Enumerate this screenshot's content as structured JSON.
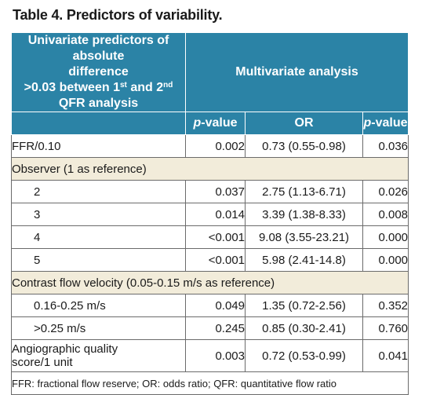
{
  "caption": "Table 4. Predictors of variability.",
  "header": {
    "univariate_line1": "Univariate predictors of absolute",
    "univariate_line2": "difference",
    "univariate_line3_pre": ">0.03 between 1",
    "univariate_sup1": "st",
    "univariate_line3_mid": " and 2",
    "univariate_sup2": "nd",
    "univariate_line3_post": " QFR analysis",
    "multivariate": "Multivariate analysis",
    "p_italic": "p",
    "p_rest": "-value",
    "or": "OR"
  },
  "rows": [
    {
      "label": "FFR/0.10",
      "p1": "0.002",
      "or": "0.73 (0.55-0.98)",
      "p2": "0.036"
    },
    {
      "section": "Observer (1 as reference)"
    },
    {
      "label": "2",
      "p1": "0.037",
      "or": "2.75 (1.13-6.71)",
      "p2": "0.026"
    },
    {
      "label": "3",
      "p1": "0.014",
      "or": "3.39 (1.38-8.33)",
      "p2": "0.008"
    },
    {
      "label": "4",
      "p1": "<0.001",
      "or": "9.08 (3.55-23.21)",
      "p2": "0.000"
    },
    {
      "label": "5",
      "p1": "<0.001",
      "or": "5.98 (2.41-14.8)",
      "p2": "0.000"
    },
    {
      "section": "Contrast flow velocity (0.05-0.15 m/s as reference)"
    },
    {
      "label": "0.16-0.25 m/s",
      "p1": "0.049",
      "or": "1.35 (0.72-2.56)",
      "p2": "0.352"
    },
    {
      "label": ">0.25 m/s",
      "p1": "0.245",
      "or": "0.85 (0.30-2.41)",
      "p2": "0.760"
    },
    {
      "label_line1": "Angiographic quality",
      "label_line2": "score/1 unit",
      "p1": "0.003",
      "or": "0.72 (0.53-0.99)",
      "p2": "0.041"
    }
  ],
  "footnote": "FFR: fractional flow reserve; OR: odds ratio; QFR: quantitative flow ratio"
}
